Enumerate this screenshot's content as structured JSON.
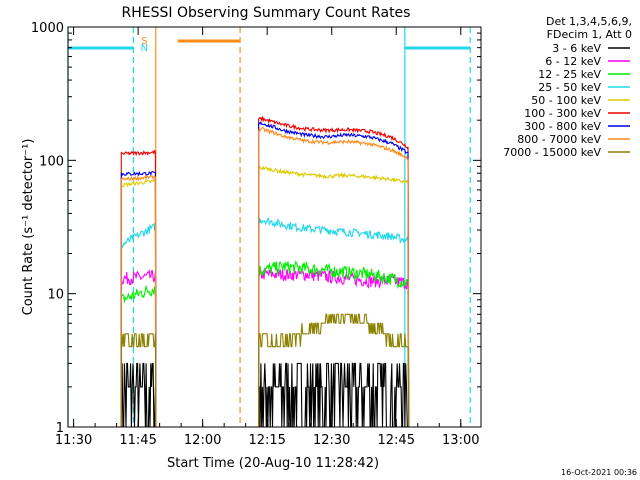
{
  "chart_data": {
    "type": "line",
    "title": "RHESSI Observing Summary Count Rates",
    "xlabel": "Start Time (20-Aug-10 11:28:42)",
    "ylabel": "Count Rate (s⁻¹ detector⁻¹)",
    "yscale": "log",
    "ylim": [
      1,
      1000
    ],
    "xlim_minutes": [
      0,
      96
    ],
    "xticks": [
      {
        "label": "11:30",
        "min": 1.3
      },
      {
        "label": "11:45",
        "min": 16.3
      },
      {
        "label": "12:00",
        "min": 31.3
      },
      {
        "label": "12:15",
        "min": 46.3
      },
      {
        "label": "12:30",
        "min": 61.3
      },
      {
        "label": "12:45",
        "min": 76.3
      },
      {
        "label": "13:00",
        "min": 91.3
      }
    ],
    "yticks": [
      {
        "label": "1",
        "value": 1
      },
      {
        "label": "10",
        "value": 10
      },
      {
        "label": "100",
        "value": 100
      },
      {
        "label": "1000",
        "value": 1000
      }
    ],
    "legend_header": [
      "Det 1,3,4,5,6,9,",
      "FDecim 1, Att 0"
    ],
    "timestamp": "16-Oct-2021 00:36",
    "markers": {
      "S_label": "S",
      "N_label": "N",
      "S_color": "#ff8c1a",
      "N_color": "#22d8e8",
      "N_bars": [
        [
          -1,
          15.2
        ],
        [
          78.3,
          93.5
        ]
      ],
      "S_bars": [
        [
          25.5,
          40
        ]
      ],
      "N_solid_lines": [
        0,
        78.3
      ],
      "N_dashed_lines": [
        15.2,
        93.5
      ],
      "S_solid_lines": [
        20.4
      ],
      "S_dashed_lines": [
        40
      ]
    },
    "segments": [
      [
        12.4,
        20.4
      ],
      [
        44.3,
        79.2
      ]
    ],
    "series": [
      {
        "name": "3 - 6 keV",
        "color": "#000000",
        "values": [
          2.5,
          2.5,
          2.5,
          2.5,
          2.5,
          2.5,
          2.5,
          2.5,
          2.5,
          2.5
        ]
      },
      {
        "name": "6 - 12 keV",
        "color": "#ff00ff",
        "values": [
          13,
          13.5,
          14,
          14,
          14,
          13.5,
          13,
          12.5,
          12.5,
          12
        ]
      },
      {
        "name": "12 - 25 keV",
        "color": "#00ee00",
        "values": [
          9,
          11,
          15,
          16,
          15.5,
          15,
          14.5,
          14,
          13,
          12
        ]
      },
      {
        "name": "25 - 50 keV",
        "color": "#22d8e8",
        "values": [
          23,
          32,
          36,
          33,
          31,
          30,
          29,
          28,
          27,
          25
        ]
      },
      {
        "name": "50 - 100 keV",
        "color": "#ddcc00",
        "values": [
          65,
          70,
          88,
          82,
          78,
          76,
          77,
          75,
          72,
          68
        ]
      },
      {
        "name": "100 - 300 keV",
        "color": "#ee0000",
        "values": [
          112,
          115,
          205,
          185,
          172,
          168,
          170,
          165,
          150,
          125
        ]
      },
      {
        "name": "300 - 800 keV",
        "color": "#0000ee",
        "values": [
          79,
          80,
          190,
          168,
          155,
          150,
          155,
          150,
          135,
          112
        ]
      },
      {
        "name": "800 - 7000 keV",
        "color": "#ff8c1a",
        "values": [
          72,
          75,
          172,
          152,
          140,
          136,
          138,
          133,
          120,
          103
        ]
      },
      {
        "name": "7000 - 15000 keV",
        "color": "#8b8000",
        "values": [
          4.5,
          4.5,
          4.5,
          4.5,
          5,
          6.5,
          6.5,
          6,
          4.5,
          4
        ]
      }
    ],
    "series_x_minutes": [
      12.4,
      20.4,
      45,
      50,
      55,
      60,
      65,
      70,
      75,
      79.2
    ]
  }
}
